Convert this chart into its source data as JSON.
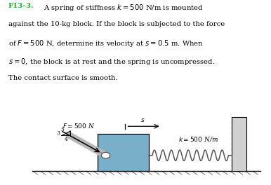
{
  "title_bold": "F13–3.",
  "line1": "  A spring of stiffness $k = 500$ N/m is mounted",
  "line2": "against the 10-kg block. If the block is subjected to the force",
  "line3": "of $F = 500$ N, determine its velocity at $s = 0.5$ m. When",
  "line4": "$s = 0$, the block is at rest and the spring is uncompressed.",
  "line5": "The contact surface is smooth.",
  "F_label": "$F = 500$ N",
  "k_label": "$k = 500$ N/m",
  "s_label": "$s$",
  "num3": "3",
  "num4": "4",
  "num5": "5",
  "block_color": "#7aafc9",
  "wall_color": "#d0d0d0",
  "spring_color": "#555555",
  "rod_color": "#b8b8b8",
  "rod_edge_color": "#888888",
  "ground_color": "#aaaaaa",
  "hatch_color": "#666666",
  "bg_color": "#ffffff",
  "title_color": "#22aa22",
  "text_fontsize": 7.2,
  "diagram_fontsize": 6.5
}
